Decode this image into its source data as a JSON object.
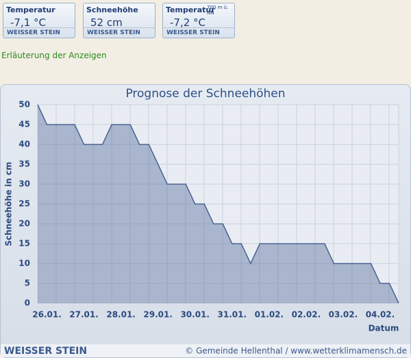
{
  "widgets": [
    {
      "label": "Temperatur",
      "value": "-7,1 °C",
      "location": "WEISSER STEIN"
    },
    {
      "label": "Schneehöhe",
      "value": "52 cm",
      "location": "WEISSER STEIN"
    },
    {
      "label": "Temperatur",
      "sublabel": "700 m ü. NN",
      "value": "-7,2 °C",
      "location": "WEISSER STEIN"
    }
  ],
  "link": "Erläuterung der Anzeigen",
  "chart_data": {
    "type": "area",
    "title": "Prognose der Schneehöhen",
    "y_label": "Schneehöhe in cm",
    "x_label": "Datum",
    "categories": [
      null,
      "26.01.",
      null,
      null,
      null,
      "27.01.",
      null,
      null,
      null,
      "28.01.",
      null,
      null,
      null,
      "29.01.",
      null,
      null,
      null,
      "30.01.",
      null,
      null,
      null,
      "31.01.",
      null,
      null,
      null,
      "01.02.",
      null,
      null,
      null,
      "02.02.",
      null,
      null,
      null,
      "03.02.",
      null,
      null,
      null,
      "04.02.",
      null,
      null
    ],
    "values": [
      50,
      45,
      45,
      45,
      45,
      40,
      40,
      40,
      45,
      45,
      45,
      40,
      40,
      35,
      30,
      30,
      30,
      25,
      25,
      20,
      20,
      15,
      15,
      10,
      15,
      15,
      15,
      15,
      15,
      15,
      15,
      15,
      10,
      10,
      10,
      10,
      10,
      5,
      5,
      0
    ],
    "color": "#4a6394",
    "ylim": [
      0,
      50
    ],
    "yticks": [
      0,
      5,
      10,
      15,
      20,
      25,
      30,
      35,
      40,
      45,
      50
    ],
    "grid": true
  },
  "footer": {
    "left": "WEISSER STEIN",
    "right": "© Gemeinde Hellenthal / www.wetterklimamensch.de"
  }
}
